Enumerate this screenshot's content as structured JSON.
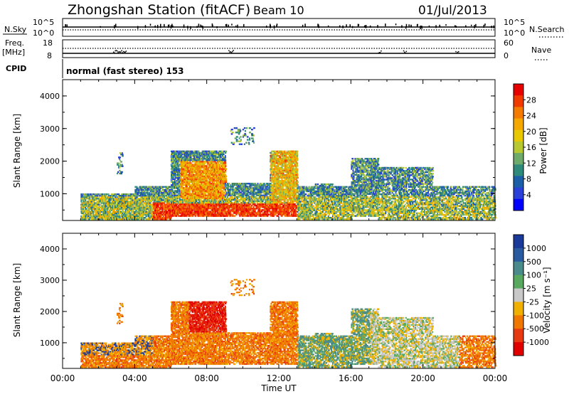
{
  "header": {
    "title": "Zhongshan Station (fitACF)",
    "beam": "Beam 10",
    "date": "01/Jul/2013"
  },
  "top_panels": {
    "nsky_label": "N.Sky",
    "nsky_ticks": [
      "10^5",
      "10^0"
    ],
    "nsearch_label": "N.Search",
    "nsearch_ticks": [
      "10^5",
      "10^0"
    ],
    "freq_label": "Freq.",
    "freq_unit": "[MHz]",
    "freq_ticks": [
      "18",
      "8"
    ],
    "nave_label": "Nave",
    "nave_ticks": [
      "60",
      "0"
    ],
    "cpid_label": "CPID",
    "cpid_text": "normal (fast stereo) 153"
  },
  "chart_data": [
    {
      "type": "heatmap",
      "name": "power",
      "ylabel": "Slant Range [km]",
      "xlabel": "",
      "ylim": [
        180,
        4500
      ],
      "yticks": [
        "4000",
        "3000",
        "2000",
        "1000"
      ],
      "xlim_hours": [
        0,
        24
      ],
      "colorbar": {
        "label": "Power [dB]",
        "ticks": [
          "28",
          "24",
          "20",
          "16",
          "12",
          "8",
          "4"
        ],
        "colors": [
          "#e60000",
          "#f03a00",
          "#f47a00",
          "#f5a800",
          "#e8c800",
          "#b8c830",
          "#6eaa6a",
          "#2e8a7a",
          "#1c5fa8",
          "#2a40d8",
          "#0000ff"
        ]
      }
    },
    {
      "type": "heatmap",
      "name": "velocity",
      "ylabel": "Slant Range [km]",
      "xlabel": "Time UT",
      "ylim": [
        180,
        4500
      ],
      "yticks": [
        "4000",
        "3000",
        "2000",
        "1000"
      ],
      "xticks": [
        "00:00",
        "04:00",
        "08:00",
        "12:00",
        "16:00",
        "20:00",
        "00:00"
      ],
      "xlim_hours": [
        0,
        24
      ],
      "colorbar": {
        "label": "Velocity [m s⁻¹]",
        "ticks": [
          "1000",
          "500",
          "100",
          "25",
          "-25",
          "-100",
          "-500",
          "-1000"
        ],
        "colors": [
          "#1a3a9a",
          "#2a5aa0",
          "#4a8a8a",
          "#58a860",
          "#c8c8c8",
          "#f0b000",
          "#f07800",
          "#e83a10",
          "#e00000"
        ]
      }
    }
  ]
}
